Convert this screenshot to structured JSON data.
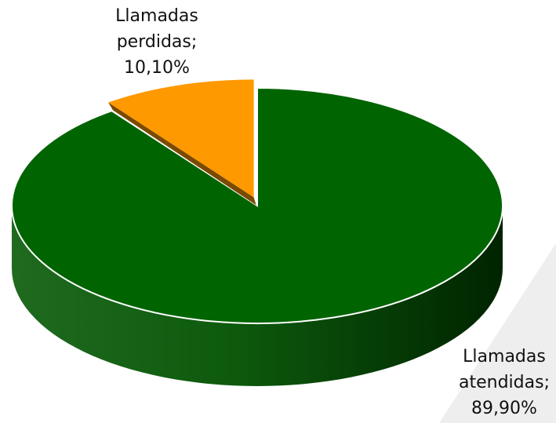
{
  "chart_data": {
    "type": "pie",
    "categories": [
      "Llamadas atendidas;",
      "Llamadas perdidas;"
    ],
    "values": [
      89.9,
      10.1
    ],
    "value_labels": [
      "89,90%",
      "10,10%"
    ],
    "colors": [
      "#006400",
      "#ff9900"
    ],
    "side_colors": [
      "#003a00",
      "#7a4a00"
    ]
  }
}
